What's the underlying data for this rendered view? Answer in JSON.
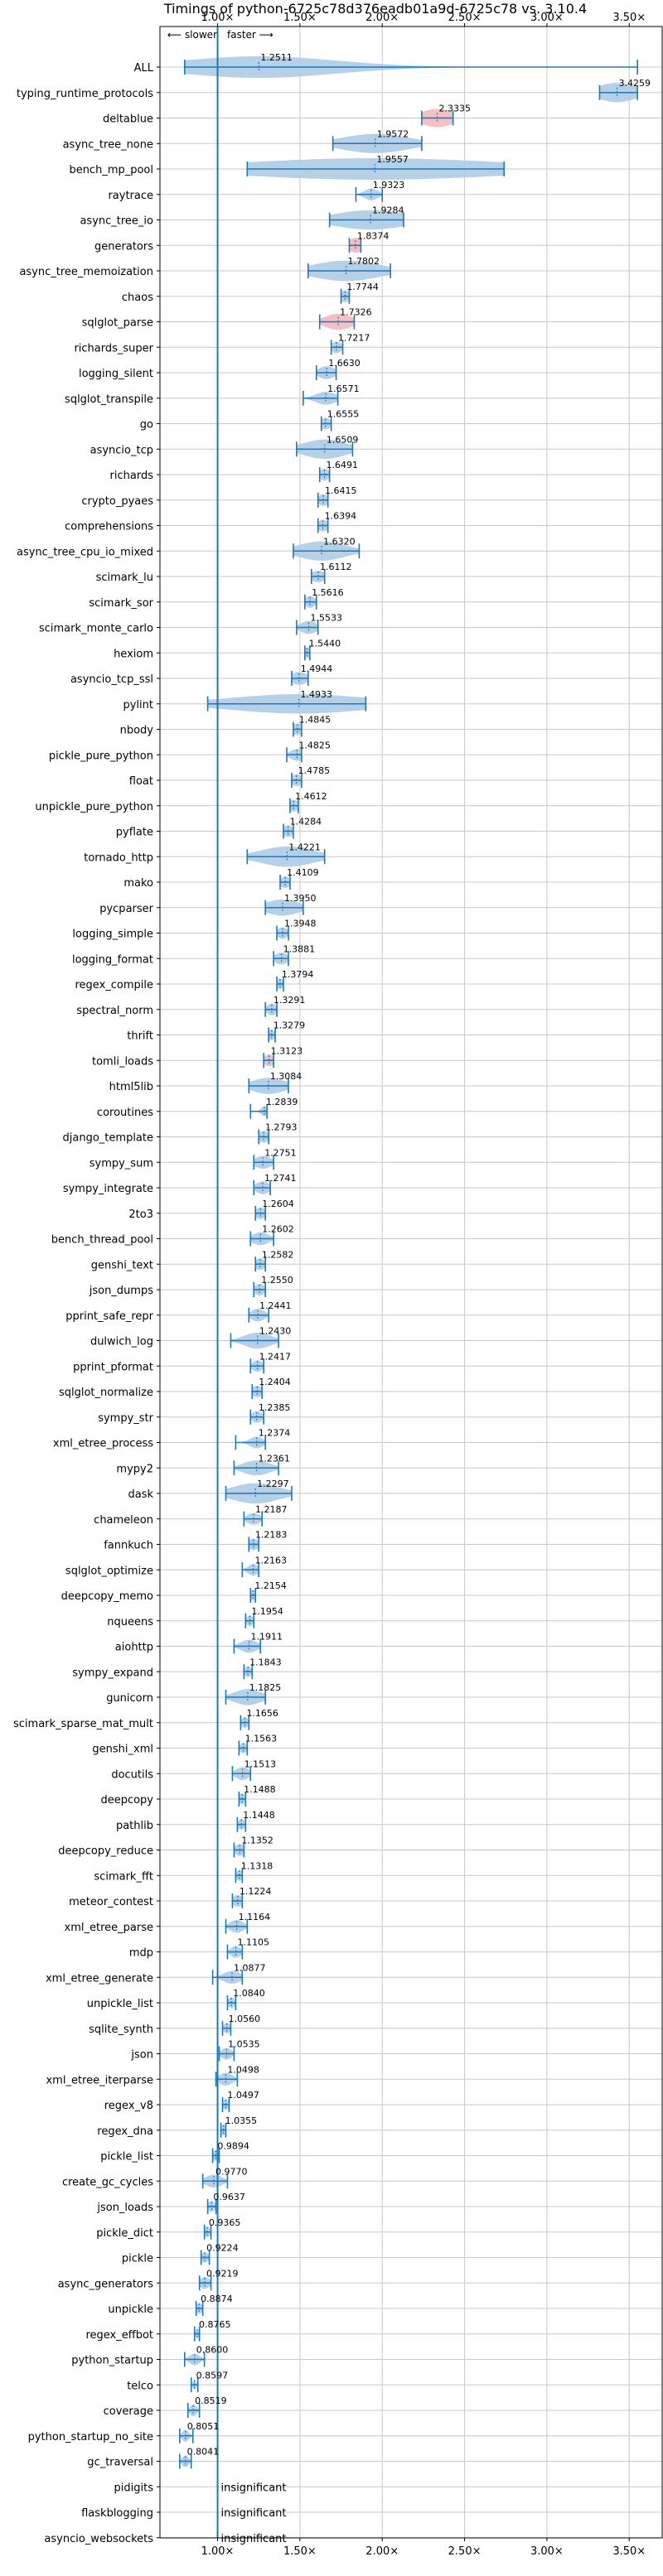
{
  "chart_data": {
    "type": "violin",
    "title": "Timings of python-6725c78d376eadb01a9d-6725c78 vs. 3.10.4",
    "annotation_slower": "⟵ slower",
    "annotation_faster": "faster ⟶",
    "xlim": [
      0.65,
      3.7
    ],
    "xticks": [
      1.0,
      1.5,
      2.0,
      2.5,
      3.0,
      3.5
    ],
    "xtick_labels": [
      "1.00×",
      "1.50×",
      "2.00×",
      "2.50×",
      "3.00×",
      "3.50×"
    ],
    "reference_line": 1.0,
    "grid": true,
    "insignificant_label": "insignificant",
    "colors": {
      "violin": "#aecbe4",
      "violin_highlight": "#f4b8bc",
      "line": "#1f77b4",
      "grid": "#c8c8c8",
      "text": "#000000"
    },
    "benchmarks": [
      {
        "name": "ALL",
        "value": 1.2511,
        "min": 0.8,
        "max": 3.55,
        "spread": 0.47,
        "width": 1.0
      },
      {
        "name": "typing_runtime_protocols",
        "value": 3.4259,
        "min": 3.32,
        "max": 3.55,
        "spread": 0.12,
        "width": 0.9
      },
      {
        "name": "deltablue",
        "value": 2.3335,
        "min": 2.24,
        "max": 2.43,
        "spread": 0.1,
        "width": 0.85,
        "highlight": true
      },
      {
        "name": "async_tree_none",
        "value": 1.9572,
        "min": 1.7,
        "max": 2.24,
        "spread": 0.2,
        "width": 0.9
      },
      {
        "name": "bench_mp_pool",
        "value": 1.9557,
        "min": 1.18,
        "max": 2.74,
        "spread": 0.8,
        "width": 1.0
      },
      {
        "name": "raytrace",
        "value": 1.9323,
        "min": 1.84,
        "max": 2.0,
        "spread": 0.04,
        "width": 0.55
      },
      {
        "name": "async_tree_io",
        "value": 1.9284,
        "min": 1.68,
        "max": 2.13,
        "spread": 0.22,
        "width": 0.9
      },
      {
        "name": "generators",
        "value": 1.8374,
        "min": 1.8,
        "max": 1.87,
        "spread": 0.04,
        "width": 0.7,
        "highlight": true
      },
      {
        "name": "async_tree_memoization",
        "value": 1.7802,
        "min": 1.55,
        "max": 2.05,
        "spread": 0.2,
        "width": 0.95
      },
      {
        "name": "chaos",
        "value": 1.7744,
        "min": 1.75,
        "max": 1.8,
        "spread": 0.03,
        "width": 0.55
      },
      {
        "name": "sqlglot_parse",
        "value": 1.7326,
        "min": 1.62,
        "max": 1.83,
        "spread": 0.08,
        "width": 0.75,
        "highlight": true
      },
      {
        "name": "richards_super",
        "value": 1.7217,
        "min": 1.69,
        "max": 1.76,
        "spread": 0.03,
        "width": 0.55
      },
      {
        "name": "logging_silent",
        "value": 1.663,
        "min": 1.6,
        "max": 1.72,
        "spread": 0.05,
        "width": 0.6
      },
      {
        "name": "sqlglot_transpile",
        "value": 1.6571,
        "min": 1.52,
        "max": 1.73,
        "spread": 0.06,
        "width": 0.6
      },
      {
        "name": "go",
        "value": 1.6555,
        "min": 1.63,
        "max": 1.69,
        "spread": 0.03,
        "width": 0.55
      },
      {
        "name": "asyncio_tcp",
        "value": 1.6509,
        "min": 1.48,
        "max": 1.82,
        "spread": 0.13,
        "width": 0.9
      },
      {
        "name": "richards",
        "value": 1.6491,
        "min": 1.62,
        "max": 1.68,
        "spread": 0.03,
        "width": 0.55
      },
      {
        "name": "crypto_pyaes",
        "value": 1.6415,
        "min": 1.61,
        "max": 1.67,
        "spread": 0.03,
        "width": 0.55
      },
      {
        "name": "comprehensions",
        "value": 1.6394,
        "min": 1.61,
        "max": 1.67,
        "spread": 0.03,
        "width": 0.55
      },
      {
        "name": "async_tree_cpu_io_mixed",
        "value": 1.632,
        "min": 1.46,
        "max": 1.86,
        "spread": 0.14,
        "width": 0.9
      },
      {
        "name": "scimark_lu",
        "value": 1.6112,
        "min": 1.57,
        "max": 1.65,
        "spread": 0.04,
        "width": 0.55
      },
      {
        "name": "scimark_sor",
        "value": 1.5616,
        "min": 1.53,
        "max": 1.6,
        "spread": 0.03,
        "width": 0.55
      },
      {
        "name": "scimark_monte_carlo",
        "value": 1.5533,
        "min": 1.48,
        "max": 1.61,
        "spread": 0.05,
        "width": 0.6
      },
      {
        "name": "hexiom",
        "value": 1.544,
        "min": 1.53,
        "max": 1.56,
        "spread": 0.02,
        "width": 0.5
      },
      {
        "name": "asyncio_tcp_ssl",
        "value": 1.4944,
        "min": 1.45,
        "max": 1.55,
        "spread": 0.05,
        "width": 0.6
      },
      {
        "name": "pylint",
        "value": 1.4933,
        "min": 0.94,
        "max": 1.9,
        "spread": 0.42,
        "width": 0.9
      },
      {
        "name": "nbody",
        "value": 1.4845,
        "min": 1.46,
        "max": 1.51,
        "spread": 0.03,
        "width": 0.55
      },
      {
        "name": "pickle_pure_python",
        "value": 1.4825,
        "min": 1.42,
        "max": 1.51,
        "spread": 0.04,
        "width": 0.55
      },
      {
        "name": "float",
        "value": 1.4785,
        "min": 1.45,
        "max": 1.51,
        "spread": 0.03,
        "width": 0.55
      },
      {
        "name": "unpickle_pure_python",
        "value": 1.4612,
        "min": 1.44,
        "max": 1.49,
        "spread": 0.03,
        "width": 0.55
      },
      {
        "name": "pyflate",
        "value": 1.4284,
        "min": 1.4,
        "max": 1.46,
        "spread": 0.03,
        "width": 0.55
      },
      {
        "name": "tornado_http",
        "value": 1.4221,
        "min": 1.18,
        "max": 1.65,
        "spread": 0.16,
        "width": 0.95
      },
      {
        "name": "mako",
        "value": 1.4109,
        "min": 1.38,
        "max": 1.44,
        "spread": 0.03,
        "width": 0.55
      },
      {
        "name": "pycparser",
        "value": 1.395,
        "min": 1.29,
        "max": 1.52,
        "spread": 0.1,
        "width": 0.75
      },
      {
        "name": "logging_simple",
        "value": 1.3948,
        "min": 1.36,
        "max": 1.43,
        "spread": 0.03,
        "width": 0.55
      },
      {
        "name": "logging_format",
        "value": 1.3881,
        "min": 1.34,
        "max": 1.43,
        "spread": 0.04,
        "width": 0.55
      },
      {
        "name": "regex_compile",
        "value": 1.3794,
        "min": 1.36,
        "max": 1.4,
        "spread": 0.02,
        "width": 0.5
      },
      {
        "name": "spectral_norm",
        "value": 1.3291,
        "min": 1.29,
        "max": 1.36,
        "spread": 0.03,
        "width": 0.55
      },
      {
        "name": "thrift",
        "value": 1.3279,
        "min": 1.31,
        "max": 1.35,
        "spread": 0.02,
        "width": 0.5
      },
      {
        "name": "tomli_loads",
        "value": 1.3123,
        "min": 1.28,
        "max": 1.34,
        "spread": 0.03,
        "width": 0.55,
        "highlight": true
      },
      {
        "name": "html5lib",
        "value": 1.3084,
        "min": 1.19,
        "max": 1.43,
        "spread": 0.1,
        "width": 0.75
      },
      {
        "name": "coroutines",
        "value": 1.2839,
        "min": 1.2,
        "max": 1.3,
        "spread": 0.02,
        "width": 0.45
      },
      {
        "name": "django_template",
        "value": 1.2793,
        "min": 1.25,
        "max": 1.31,
        "spread": 0.03,
        "width": 0.55
      },
      {
        "name": "sympy_sum",
        "value": 1.2751,
        "min": 1.22,
        "max": 1.34,
        "spread": 0.05,
        "width": 0.6
      },
      {
        "name": "sympy_integrate",
        "value": 1.2741,
        "min": 1.22,
        "max": 1.32,
        "spread": 0.04,
        "width": 0.6
      },
      {
        "name": "2to3",
        "value": 1.2604,
        "min": 1.23,
        "max": 1.29,
        "spread": 0.03,
        "width": 0.55
      },
      {
        "name": "bench_thread_pool",
        "value": 1.2602,
        "min": 1.2,
        "max": 1.34,
        "spread": 0.05,
        "width": 0.6
      },
      {
        "name": "genshi_text",
        "value": 1.2582,
        "min": 1.23,
        "max": 1.29,
        "spread": 0.03,
        "width": 0.55
      },
      {
        "name": "json_dumps",
        "value": 1.255,
        "min": 1.22,
        "max": 1.29,
        "spread": 0.03,
        "width": 0.55
      },
      {
        "name": "pprint_safe_repr",
        "value": 1.2441,
        "min": 1.19,
        "max": 1.31,
        "spread": 0.04,
        "width": 0.6
      },
      {
        "name": "dulwich_log",
        "value": 1.243,
        "min": 1.08,
        "max": 1.37,
        "spread": 0.08,
        "width": 0.75
      },
      {
        "name": "pprint_pformat",
        "value": 1.2417,
        "min": 1.2,
        "max": 1.28,
        "spread": 0.03,
        "width": 0.55
      },
      {
        "name": "sqlglot_normalize",
        "value": 1.2404,
        "min": 1.21,
        "max": 1.27,
        "spread": 0.03,
        "width": 0.55
      },
      {
        "name": "sympy_str",
        "value": 1.2385,
        "min": 1.2,
        "max": 1.28,
        "spread": 0.03,
        "width": 0.55
      },
      {
        "name": "xml_etree_process",
        "value": 1.2374,
        "min": 1.11,
        "max": 1.29,
        "spread": 0.04,
        "width": 0.55
      },
      {
        "name": "mypy2",
        "value": 1.2361,
        "min": 1.1,
        "max": 1.37,
        "spread": 0.08,
        "width": 0.7
      },
      {
        "name": "dask",
        "value": 1.2297,
        "min": 1.05,
        "max": 1.45,
        "spread": 0.14,
        "width": 0.95
      },
      {
        "name": "chameleon",
        "value": 1.2187,
        "min": 1.16,
        "max": 1.27,
        "spread": 0.04,
        "width": 0.55
      },
      {
        "name": "fannkuch",
        "value": 1.2183,
        "min": 1.19,
        "max": 1.25,
        "spread": 0.03,
        "width": 0.55
      },
      {
        "name": "sqlglot_optimize",
        "value": 1.2163,
        "min": 1.15,
        "max": 1.25,
        "spread": 0.03,
        "width": 0.55
      },
      {
        "name": "deepcopy_memo",
        "value": 1.2154,
        "min": 1.2,
        "max": 1.23,
        "spread": 0.02,
        "width": 0.5
      },
      {
        "name": "nqueens",
        "value": 1.1954,
        "min": 1.17,
        "max": 1.22,
        "spread": 0.02,
        "width": 0.5
      },
      {
        "name": "aiohttp",
        "value": 1.1911,
        "min": 1.1,
        "max": 1.26,
        "spread": 0.05,
        "width": 0.6
      },
      {
        "name": "sympy_expand",
        "value": 1.1843,
        "min": 1.16,
        "max": 1.21,
        "spread": 0.02,
        "width": 0.5
      },
      {
        "name": "gunicorn",
        "value": 1.1825,
        "min": 1.05,
        "max": 1.29,
        "spread": 0.08,
        "width": 0.75
      },
      {
        "name": "scimark_sparse_mat_mult",
        "value": 1.1656,
        "min": 1.14,
        "max": 1.19,
        "spread": 0.02,
        "width": 0.5
      },
      {
        "name": "genshi_xml",
        "value": 1.1563,
        "min": 1.13,
        "max": 1.18,
        "spread": 0.02,
        "width": 0.5
      },
      {
        "name": "docutils",
        "value": 1.1513,
        "min": 1.09,
        "max": 1.2,
        "spread": 0.04,
        "width": 0.6
      },
      {
        "name": "deepcopy",
        "value": 1.1488,
        "min": 1.13,
        "max": 1.17,
        "spread": 0.02,
        "width": 0.5
      },
      {
        "name": "pathlib",
        "value": 1.1448,
        "min": 1.12,
        "max": 1.17,
        "spread": 0.02,
        "width": 0.5
      },
      {
        "name": "deepcopy_reduce",
        "value": 1.1352,
        "min": 1.1,
        "max": 1.16,
        "spread": 0.03,
        "width": 0.55
      },
      {
        "name": "scimark_fft",
        "value": 1.1318,
        "min": 1.11,
        "max": 1.15,
        "spread": 0.02,
        "width": 0.5
      },
      {
        "name": "meteor_contest",
        "value": 1.1224,
        "min": 1.09,
        "max": 1.15,
        "spread": 0.03,
        "width": 0.55
      },
      {
        "name": "xml_etree_parse",
        "value": 1.1164,
        "min": 1.05,
        "max": 1.18,
        "spread": 0.04,
        "width": 0.6
      },
      {
        "name": "mdp",
        "value": 1.1105,
        "min": 1.06,
        "max": 1.15,
        "spread": 0.03,
        "width": 0.55
      },
      {
        "name": "xml_etree_generate",
        "value": 1.0877,
        "min": 0.97,
        "max": 1.15,
        "spread": 0.05,
        "width": 0.6
      },
      {
        "name": "unpickle_list",
        "value": 1.084,
        "min": 1.06,
        "max": 1.11,
        "spread": 0.02,
        "width": 0.5
      },
      {
        "name": "sqlite_synth",
        "value": 1.056,
        "min": 1.03,
        "max": 1.08,
        "spread": 0.02,
        "width": 0.5
      },
      {
        "name": "json",
        "value": 1.0535,
        "min": 1.01,
        "max": 1.1,
        "spread": 0.03,
        "width": 0.55
      },
      {
        "name": "xml_etree_iterparse",
        "value": 1.0498,
        "min": 0.99,
        "max": 1.12,
        "spread": 0.04,
        "width": 0.6
      },
      {
        "name": "regex_v8",
        "value": 1.0497,
        "min": 1.03,
        "max": 1.07,
        "spread": 0.02,
        "width": 0.5
      },
      {
        "name": "regex_dna",
        "value": 1.0355,
        "min": 1.02,
        "max": 1.05,
        "spread": 0.02,
        "width": 0.5
      },
      {
        "name": "pickle_list",
        "value": 0.9894,
        "min": 0.97,
        "max": 1.01,
        "spread": 0.02,
        "width": 0.5
      },
      {
        "name": "create_gc_cycles",
        "value": 0.977,
        "min": 0.91,
        "max": 1.06,
        "spread": 0.05,
        "width": 0.6
      },
      {
        "name": "json_loads",
        "value": 0.9637,
        "min": 0.94,
        "max": 0.99,
        "spread": 0.02,
        "width": 0.5
      },
      {
        "name": "pickle_dict",
        "value": 0.9365,
        "min": 0.92,
        "max": 0.96,
        "spread": 0.02,
        "width": 0.5
      },
      {
        "name": "pickle",
        "value": 0.9224,
        "min": 0.9,
        "max": 0.95,
        "spread": 0.02,
        "width": 0.5
      },
      {
        "name": "async_generators",
        "value": 0.9219,
        "min": 0.89,
        "max": 0.96,
        "spread": 0.03,
        "width": 0.55
      },
      {
        "name": "unpickle",
        "value": 0.8874,
        "min": 0.87,
        "max": 0.91,
        "spread": 0.02,
        "width": 0.5
      },
      {
        "name": "regex_effbot",
        "value": 0.8765,
        "min": 0.86,
        "max": 0.89,
        "spread": 0.01,
        "width": 0.45
      },
      {
        "name": "python_startup",
        "value": 0.86,
        "min": 0.8,
        "max": 0.92,
        "spread": 0.03,
        "width": 0.55
      },
      {
        "name": "telco",
        "value": 0.8597,
        "min": 0.84,
        "max": 0.88,
        "spread": 0.01,
        "width": 0.45
      },
      {
        "name": "coverage",
        "value": 0.8519,
        "min": 0.82,
        "max": 0.89,
        "spread": 0.02,
        "width": 0.55
      },
      {
        "name": "python_startup_no_site",
        "value": 0.8051,
        "min": 0.77,
        "max": 0.85,
        "spread": 0.02,
        "width": 0.55
      },
      {
        "name": "gc_traversal",
        "value": 0.8041,
        "min": 0.77,
        "max": 0.84,
        "spread": 0.02,
        "width": 0.55
      },
      {
        "name": "pidigits",
        "insignificant": true
      },
      {
        "name": "flaskblogging",
        "insignificant": true
      },
      {
        "name": "asyncio_websockets",
        "insignificant": true
      }
    ]
  }
}
